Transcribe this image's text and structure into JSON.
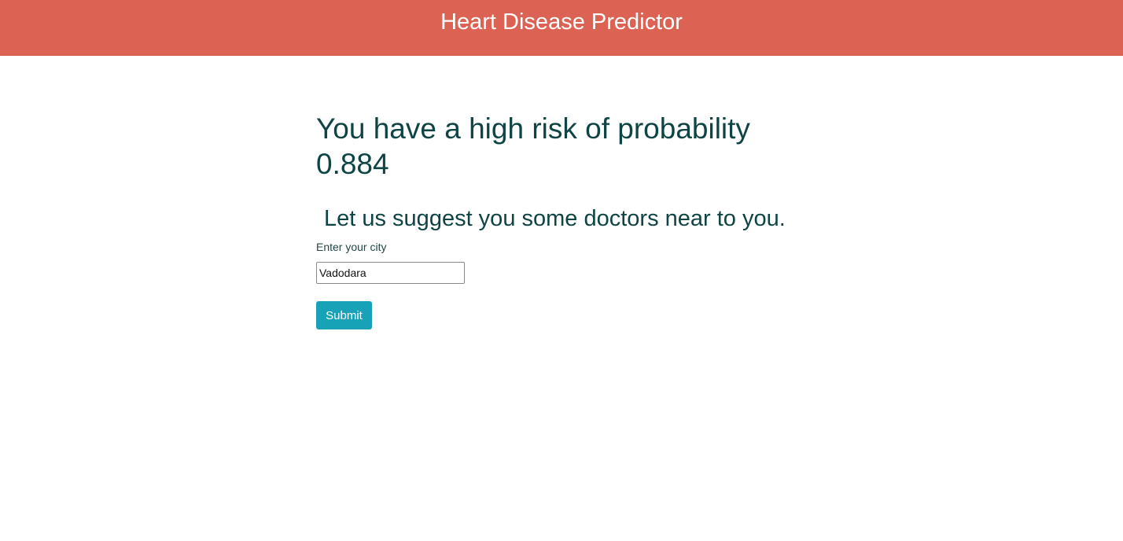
{
  "header": {
    "title": "Heart Disease Predictor"
  },
  "result": {
    "message": "You have a high risk of probability",
    "probability": "0.884"
  },
  "suggestion": {
    "heading": "Let us suggest you some doctors near to you."
  },
  "city_form": {
    "label": "Enter your city",
    "value": "Vadodara",
    "submit_label": "Submit"
  },
  "colors": {
    "header_bg": "#dc6353",
    "heading_text": "#0f4444",
    "button_bg": "#17a2b8"
  }
}
